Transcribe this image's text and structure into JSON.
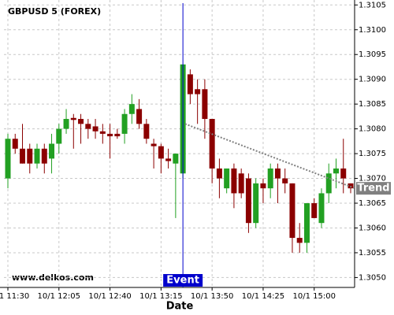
{
  "chart_data": {
    "type": "candlestick",
    "title": "GBPUSD 5 (FOREX)",
    "watermark": "www.delkos.com",
    "x_label": "Date",
    "categories": [
      "10/1 11:30",
      null,
      null,
      null,
      null,
      null,
      null,
      "10/1 12:05",
      null,
      null,
      null,
      null,
      null,
      null,
      "10/1 12:40",
      null,
      null,
      null,
      null,
      null,
      null,
      "10/1 13:15",
      null,
      null,
      null,
      null,
      null,
      null,
      "10/1 13:50",
      null,
      null,
      null,
      null,
      null,
      null,
      "10/1 14:25",
      null,
      null,
      null,
      null,
      null,
      null,
      "10/1 15:00",
      null,
      null,
      null,
      null,
      null
    ],
    "open": [
      1.307,
      1.3078,
      1.3076,
      1.3076,
      1.3073,
      1.3076,
      1.3074,
      1.3077,
      1.308,
      1.30822,
      1.3082,
      1.3081,
      1.30805,
      1.30795,
      1.3079,
      1.3079,
      1.3079,
      1.3083,
      1.3084,
      1.3081,
      1.3077,
      1.30765,
      1.3074,
      1.3073,
      1.3071,
      1.3091,
      1.3088,
      1.3088,
      1.3082,
      1.3072,
      1.3068,
      1.3072,
      1.3071,
      1.307,
      1.3061,
      1.3069,
      1.3068,
      1.3072,
      1.307,
      1.3069,
      1.3058,
      1.3057,
      1.3065,
      1.3061,
      1.3067,
      1.3071,
      1.3072,
      1.3069
    ],
    "high": [
      1.3079,
      1.3079,
      1.3081,
      1.3077,
      1.3077,
      1.3077,
      1.3079,
      1.3081,
      1.3084,
      1.3083,
      1.3083,
      1.3082,
      1.3082,
      1.3081,
      1.3081,
      1.308,
      1.3084,
      1.3087,
      1.3086,
      1.3082,
      1.3078,
      1.3077,
      1.3076,
      1.3075,
      1.3093,
      1.3092,
      1.309,
      1.309,
      1.3082,
      1.3074,
      1.3072,
      1.3073,
      1.3072,
      1.3071,
      1.307,
      1.307,
      1.3073,
      1.3073,
      1.3072,
      1.3069,
      1.3061,
      1.3065,
      1.3066,
      1.3068,
      1.3073,
      1.3074,
      1.3078,
      1.3069
    ],
    "low": [
      1.3068,
      1.3075,
      1.3073,
      1.3071,
      1.3072,
      1.3071,
      1.3071,
      1.3075,
      1.3079,
      1.3076,
      1.3077,
      1.3078,
      1.3078,
      1.3077,
      1.3074,
      1.3078,
      1.3077,
      1.3081,
      1.308,
      1.3077,
      1.3072,
      1.3071,
      1.3072,
      1.3062,
      1.307,
      1.3085,
      1.3081,
      1.3078,
      1.3069,
      1.3066,
      1.3067,
      1.3064,
      1.3066,
      1.3059,
      1.306,
      1.3065,
      1.3066,
      1.3065,
      1.3067,
      1.3055,
      1.3055,
      1.3055,
      1.3062,
      1.306,
      1.3065,
      1.3068,
      1.3067,
      1.3067
    ],
    "close": [
      1.3078,
      1.3076,
      1.3073,
      1.3073,
      1.3076,
      1.3073,
      1.3077,
      1.308,
      1.3082,
      1.30818,
      1.3081,
      1.308,
      1.30795,
      1.3079,
      1.30785,
      1.30785,
      1.3083,
      1.3085,
      1.3081,
      1.3078,
      1.30765,
      1.3074,
      1.30735,
      1.3075,
      1.3093,
      1.3087,
      1.3087,
      1.3082,
      1.3072,
      1.307,
      1.3072,
      1.3067,
      1.3067,
      1.3061,
      1.3069,
      1.3068,
      1.3072,
      1.307,
      1.3069,
      1.3058,
      1.3057,
      1.3065,
      1.3062,
      1.3067,
      1.3071,
      1.3072,
      1.307,
      1.3068
    ],
    "up_color": "#22a022",
    "down_color": "#8b0000",
    "ylim": [
      1.3048,
      1.3106
    ],
    "yticks": [
      {
        "value": 1.3105,
        "label": "1.3105"
      },
      {
        "value": 1.31,
        "label": "1.3100"
      },
      {
        "value": 1.3095,
        "label": "1.3095"
      },
      {
        "value": 1.309,
        "label": "1.3090"
      },
      {
        "value": 1.3085,
        "label": "1.3085"
      },
      {
        "value": 1.308,
        "label": "1.3080"
      },
      {
        "value": 1.3075,
        "label": "1.3075"
      },
      {
        "value": 1.307,
        "label": "1.3070"
      },
      {
        "value": 1.3065,
        "label": "1.3065"
      },
      {
        "value": 1.306,
        "label": "1.3060"
      },
      {
        "value": 1.3055,
        "label": "1.3055"
      },
      {
        "value": 1.305,
        "label": "1.3050"
      }
    ],
    "grid": true,
    "event": {
      "label": "Event",
      "index": 24,
      "color": "#0000cc"
    },
    "trend": {
      "label": "Trend",
      "x": [
        24.3,
        47.6
      ],
      "y": [
        1.3081,
        1.3068
      ],
      "color": "#808080"
    }
  }
}
